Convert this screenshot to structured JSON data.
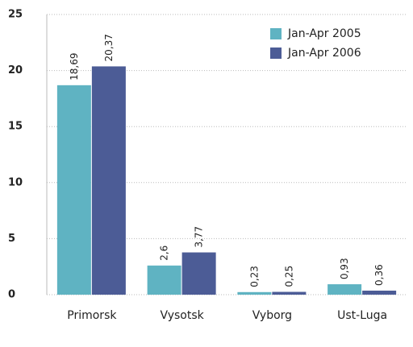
{
  "chart_data": {
    "type": "bar",
    "categories": [
      "Primorsk",
      "Vysotsk",
      "Vyborg",
      "Ust-Luga"
    ],
    "series": [
      {
        "name": "Jan-Apr 2005",
        "color": "#5fb3c2",
        "values": [
          18.69,
          2.6,
          0.23,
          0.93
        ],
        "value_labels": [
          "18,69",
          "2,6",
          "0,23",
          "0,93"
        ]
      },
      {
        "name": "Jan-Apr 2006",
        "color": "#4c5c96",
        "values": [
          20.37,
          3.77,
          0.25,
          0.36
        ],
        "value_labels": [
          "20,37",
          "3,77",
          "0,25",
          "0,36"
        ]
      }
    ],
    "ylim": [
      0,
      25
    ],
    "yticks": [
      0,
      5,
      10,
      15,
      20,
      25
    ],
    "grid": true,
    "legend": "upper right"
  }
}
